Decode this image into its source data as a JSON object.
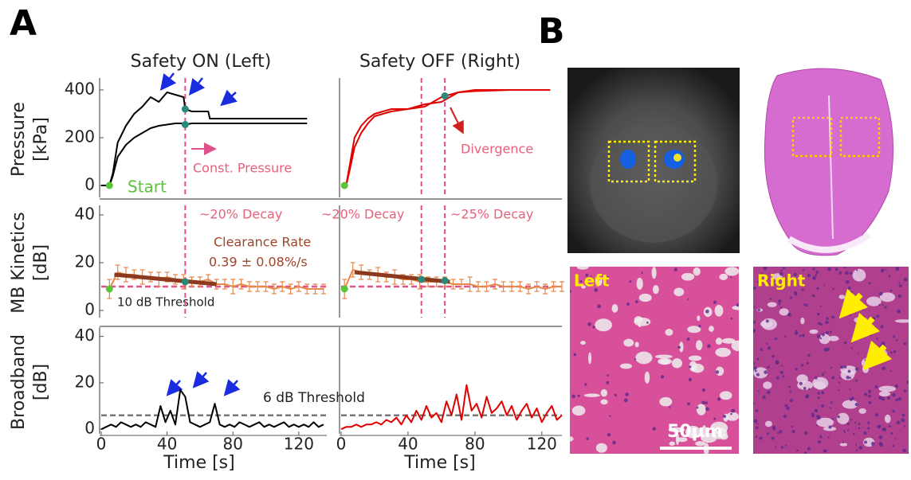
{
  "panel_labels": [
    "A",
    "B"
  ],
  "histology": {
    "left": "Left",
    "right": "Right",
    "scale_bar": "50μm"
  },
  "chart_data": [
    {
      "type": "line",
      "title": "Safety ON (Left)",
      "ylabel": [
        "Pressure",
        "[kPa]"
      ],
      "x": [
        0,
        5,
        7,
        10,
        15,
        20,
        25,
        30,
        35,
        40,
        45,
        50,
        51,
        55,
        60,
        65,
        66,
        80,
        100,
        125
      ],
      "series": [
        {
          "color": "#000000",
          "values": [
            0,
            0,
            50,
            180,
            250,
            300,
            330,
            370,
            350,
            390,
            380,
            370,
            320,
            310,
            310,
            310,
            280,
            280,
            280,
            280
          ]
        },
        {
          "color": "#000000",
          "values": [
            0,
            0,
            40,
            120,
            170,
            200,
            220,
            240,
            250,
            255,
            260,
            260,
            255,
            260,
            260,
            260,
            260,
            260,
            260,
            260
          ]
        }
      ],
      "xlim": [
        0,
        137
      ],
      "ylim": [
        -50,
        450
      ],
      "yticks": [
        0,
        200,
        400
      ],
      "markers": {
        "x": [
          51,
          51
        ],
        "y": [
          320,
          255
        ],
        "color": "#2a8a7a"
      },
      "start": {
        "x": [
          5
        ],
        "y": [
          0
        ],
        "color": "#5ac43a"
      },
      "vlines": [
        51
      ],
      "annotations": [
        "Start",
        "Const. Pressure"
      ]
    },
    {
      "type": "line",
      "title": "Safety OFF (Right)",
      "x": [
        0,
        3,
        5,
        8,
        12,
        16,
        20,
        25,
        30,
        40,
        50,
        60,
        65,
        70,
        80,
        100,
        115,
        125
      ],
      "series": [
        {
          "color": "#e00000",
          "values": [
            0,
            0,
            80,
            200,
            250,
            280,
            300,
            310,
            320,
            320,
            330,
            370,
            380,
            390,
            395,
            400,
            400,
            400
          ]
        },
        {
          "color": "#e00000",
          "values": [
            0,
            0,
            60,
            160,
            220,
            260,
            290,
            300,
            310,
            320,
            340,
            350,
            370,
            390,
            400,
            400,
            400,
            400
          ]
        }
      ],
      "xlim": [
        0,
        132
      ],
      "ylim": [
        -50,
        450
      ],
      "markers": {
        "x": [
          62
        ],
        "y": [
          375
        ],
        "color": "#2a8a7a"
      },
      "start": {
        "x": [
          2
        ],
        "y": [
          0
        ],
        "color": "#5ac43a"
      },
      "vlines": [
        48,
        62
      ],
      "annotations": [
        "Divergence"
      ]
    },
    {
      "type": "line",
      "ylabel": [
        "MB Kinetics",
        "[dB]"
      ],
      "x": [
        5,
        10,
        15,
        20,
        25,
        30,
        35,
        40,
        45,
        50,
        55,
        60,
        65,
        70,
        75,
        80,
        85,
        90,
        95,
        100,
        105,
        110,
        115,
        120,
        125,
        130,
        135
      ],
      "series": [
        {
          "color": "#e8884a",
          "values": [
            9,
            16,
            15,
            15,
            14,
            14,
            13,
            14,
            13,
            12,
            12,
            12,
            13,
            11,
            11,
            10,
            11,
            10,
            10,
            10,
            9,
            10,
            9,
            10,
            9,
            9,
            9
          ],
          "errors": [
            4,
            3,
            3,
            2,
            3,
            2,
            3,
            2,
            2,
            3,
            2,
            2,
            2,
            2,
            2,
            3,
            2,
            2,
            2,
            2,
            2,
            2,
            2,
            2,
            2,
            2,
            2
          ]
        },
        {
          "color": "#8b3a1e",
          "x": [
            8,
            70
          ],
          "values": [
            15,
            11
          ]
        }
      ],
      "xlim": [
        0,
        137
      ],
      "ylim": [
        -3,
        44
      ],
      "yticks": [
        0,
        20,
        40
      ],
      "markers": {
        "x": [
          51
        ],
        "y": [
          12
        ],
        "color": "#2a8a7a"
      },
      "start": {
        "x": [
          5
        ],
        "y": [
          9
        ],
        "color": "#5ac43a"
      },
      "threshold": 10,
      "threshold_color": "#e0508a",
      "threshold_label": "10 dB Threshold",
      "vlines": [
        51
      ],
      "annotations": [
        "~20% Decay",
        "Clearance Rate",
        "0.39 ± 0.08%/s"
      ]
    },
    {
      "type": "line",
      "x": [
        2,
        7,
        12,
        17,
        22,
        27,
        32,
        37,
        42,
        47,
        52,
        57,
        62,
        67,
        72,
        77,
        82,
        87,
        92,
        97,
        102,
        107,
        112,
        117,
        122,
        127,
        132
      ],
      "series": [
        {
          "color": "#e8884a",
          "values": [
            9,
            17,
            16,
            15,
            15,
            14,
            14,
            13,
            13,
            12,
            12,
            12,
            12,
            11,
            11,
            11,
            10,
            10,
            11,
            10,
            10,
            10,
            9,
            10,
            9,
            10,
            10
          ],
          "errors": [
            4,
            3,
            3,
            2,
            3,
            2,
            3,
            2,
            2,
            3,
            2,
            2,
            2,
            2,
            2,
            3,
            2,
            2,
            2,
            2,
            2,
            2,
            2,
            2,
            2,
            2,
            2
          ]
        },
        {
          "color": "#8b3a1e",
          "x": [
            8,
            65
          ],
          "values": [
            16,
            12
          ]
        }
      ],
      "xlim": [
        0,
        132
      ],
      "ylim": [
        -3,
        44
      ],
      "markers": {
        "x": [
          48,
          62
        ],
        "y": [
          13,
          12.5
        ],
        "color": "#2a8a7a"
      },
      "start": {
        "x": [
          2
        ],
        "y": [
          9
        ],
        "color": "#5ac43a"
      },
      "threshold": 10,
      "threshold_color": "#e0508a",
      "vlines": [
        48,
        62
      ],
      "annotations": [
        "~20% Decay",
        "~25% Decay"
      ]
    },
    {
      "type": "line",
      "ylabel": [
        "Broadband",
        "[dB]"
      ],
      "xlabel": "Time [s]",
      "x": [
        0,
        3,
        6,
        9,
        12,
        15,
        18,
        21,
        24,
        27,
        30,
        33,
        36,
        39,
        42,
        45,
        48,
        51,
        54,
        57,
        60,
        63,
        66,
        69,
        72,
        75,
        78,
        81,
        84,
        87,
        90,
        93,
        96,
        99,
        102,
        105,
        108,
        111,
        114,
        117,
        120,
        123,
        126,
        129,
        132,
        135
      ],
      "series": [
        {
          "color": "#000000",
          "values": [
            0,
            1,
            2,
            1,
            3,
            2,
            1,
            2,
            1,
            3,
            2,
            1,
            10,
            3,
            8,
            2,
            17,
            14,
            3,
            2,
            1,
            2,
            3,
            11,
            2,
            1,
            2,
            1,
            3,
            2,
            1,
            2,
            3,
            1,
            2,
            1,
            2,
            3,
            1,
            2,
            1,
            2,
            1,
            3,
            1,
            2
          ]
        }
      ],
      "xlim": [
        0,
        137
      ],
      "ylim": [
        -2,
        44
      ],
      "xticks": [
        0,
        40,
        80,
        120
      ],
      "yticks": [
        0,
        20,
        40
      ],
      "threshold": 6,
      "threshold_color": "#777777",
      "threshold_label": "6 dB Threshold"
    },
    {
      "type": "line",
      "xlabel": "Time [s]",
      "x": [
        0,
        3,
        6,
        9,
        12,
        15,
        18,
        21,
        24,
        27,
        30,
        33,
        36,
        39,
        42,
        45,
        48,
        51,
        54,
        57,
        60,
        63,
        66,
        69,
        72,
        75,
        78,
        81,
        84,
        87,
        90,
        93,
        96,
        99,
        102,
        105,
        108,
        111,
        114,
        117,
        120,
        123,
        126,
        129,
        132
      ],
      "series": [
        {
          "color": "#e00000",
          "values": [
            0,
            1,
            1,
            2,
            1,
            2,
            2,
            3,
            2,
            4,
            3,
            5,
            2,
            6,
            3,
            8,
            4,
            10,
            5,
            7,
            3,
            12,
            6,
            15,
            4,
            19,
            8,
            11,
            5,
            14,
            7,
            9,
            12,
            6,
            10,
            4,
            8,
            11,
            5,
            9,
            3,
            7,
            10,
            4,
            6
          ]
        }
      ],
      "xlim": [
        0,
        132
      ],
      "ylim": [
        -2,
        44
      ],
      "xticks": [
        0,
        40,
        80,
        120
      ],
      "threshold": 6,
      "threshold_color": "#777777"
    }
  ]
}
